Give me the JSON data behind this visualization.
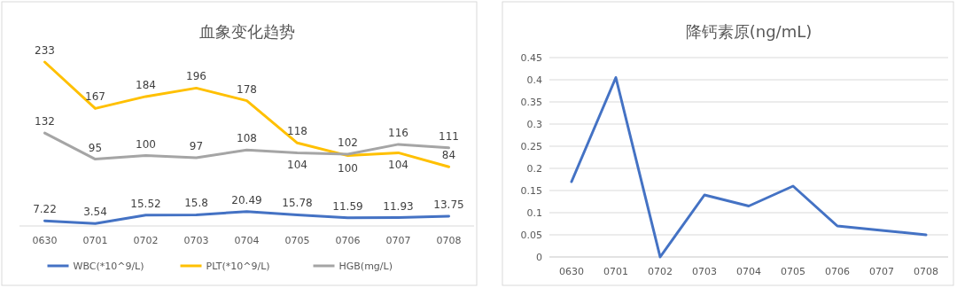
{
  "chart_data": [
    {
      "type": "line",
      "title": "血象变化趋势",
      "categories": [
        "0630",
        "0701",
        "0702",
        "0703",
        "0704",
        "0705",
        "0706",
        "0707",
        "0708"
      ],
      "series": [
        {
          "name": "WBC(*10^9/L)",
          "color": "#4472c4",
          "values": [
            7.22,
            3.54,
            15.52,
            15.8,
            20.49,
            15.78,
            11.59,
            11.93,
            13.75
          ]
        },
        {
          "name": "PLT(*10^9/L)",
          "color": "#ffc000",
          "values": [
            233,
            167,
            184,
            196,
            178,
            118,
            100,
            104,
            84
          ]
        },
        {
          "name": "HGB(mg/L)",
          "color": "#a5a5a5",
          "values": [
            132,
            95,
            100,
            97,
            108,
            104,
            102,
            116,
            111
          ]
        }
      ],
      "data_labels": true,
      "legend": "bottom"
    },
    {
      "type": "line",
      "title": "降钙素原(ng/mL)",
      "categories": [
        "0630",
        "0701",
        "0702",
        "0703",
        "0704",
        "0705",
        "0706",
        "0707",
        "0708"
      ],
      "series": [
        {
          "color": "#4472c4",
          "values": [
            0.17,
            0.405,
            0,
            0.14,
            0.115,
            0.16,
            0.07,
            0.06,
            0.05
          ]
        }
      ],
      "ylim": [
        0,
        0.45
      ],
      "yticks": [
        0,
        0.05,
        0.1,
        0.15,
        0.2,
        0.25,
        0.3,
        0.35,
        0.4,
        0.45
      ],
      "grid": "y"
    }
  ]
}
